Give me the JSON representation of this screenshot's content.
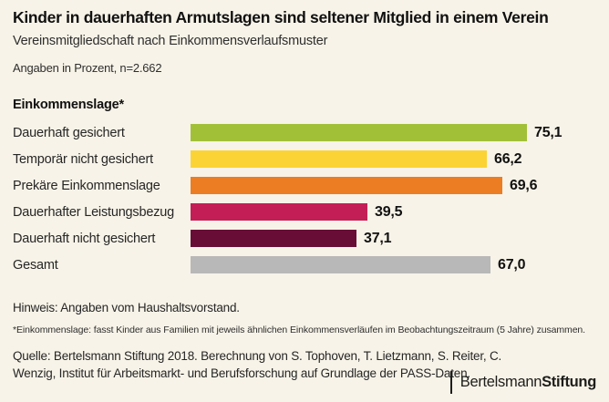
{
  "meta": {
    "background": "#f7f3e8",
    "text_color": "#1a1a1a"
  },
  "header": {
    "title": "Kinder in dauerhaften Armutslagen sind seltener Mitglied in einem Verein",
    "subtitle": "Vereinsmitgliedschaft nach Einkommensverlaufsmuster",
    "note": "Angaben in Prozent, n=2.662"
  },
  "chart_data": {
    "type": "bar",
    "orientation": "horizontal",
    "group_label": "Einkommenslage*",
    "categories": [
      "Dauerhaft gesichert",
      "Temporär nicht gesichert",
      "Prekäre Einkommenslage",
      "Dauerhafter Leistungsbezug",
      "Dauerhaft nicht gesichert",
      "Gesamt"
    ],
    "values": [
      75.1,
      66.2,
      69.6,
      39.5,
      37.1,
      67.0
    ],
    "value_labels": [
      "75,1",
      "66,2",
      "69,6",
      "39,5",
      "37,1",
      "67,0"
    ],
    "colors": [
      "#a2c037",
      "#fcd334",
      "#ec7d23",
      "#c41e56",
      "#670d36",
      "#b8b8b8"
    ],
    "xlim": [
      0,
      80
    ],
    "unit": "Prozent",
    "grid": false,
    "legend": false
  },
  "footer": {
    "hint": "Hinweis: Angaben vom Haushaltsvorstand.",
    "footnote": "*Einkommenslage: fasst Kinder aus Familien mit jeweils ähnlichen Einkommensverläufen im Beobachtungszeitraum (5 Jahre) zusammen.",
    "source": "Quelle: Bertelsmann Stiftung 2018. Berechnung von S. Tophoven, T. Lietzmann, S. Reiter, C. Wenzig, Institut für Arbeitsmarkt- und Berufsforschung auf Grundlage der PASS-Daten.",
    "logo": {
      "brand_regular": "Bertelsmann",
      "brand_bold": "Stiftung",
      "bar_color": "#1d1d1b"
    }
  }
}
